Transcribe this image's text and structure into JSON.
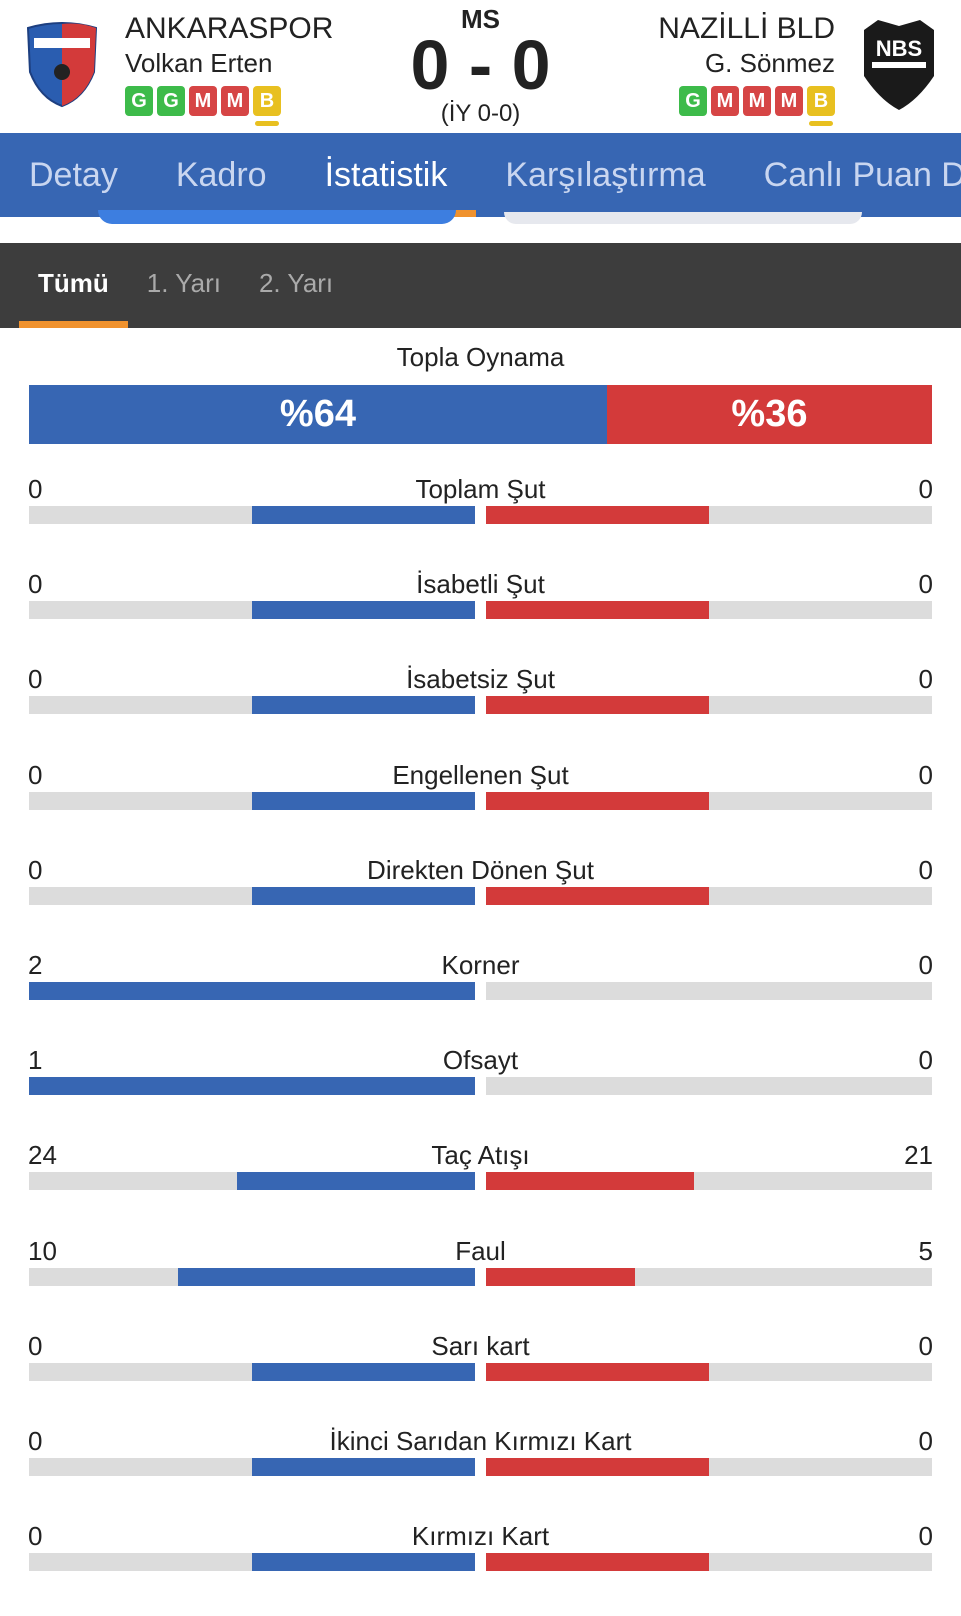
{
  "header": {
    "status": "MS",
    "score_home": "0",
    "score_sep": "-",
    "score_away": "0",
    "halftime": "(İY 0-0)",
    "home": {
      "name": "ANKARASPOR",
      "coach": "Volkan Erten",
      "logo_text": "ANKARASPOR",
      "form": [
        "G",
        "G",
        "M",
        "M",
        "B"
      ]
    },
    "away": {
      "name": "NAZİLLİ BLD",
      "coach": "G. Sönmez",
      "logo_text": "NBS",
      "form": [
        "G",
        "M",
        "M",
        "M",
        "B"
      ]
    }
  },
  "form_colors": {
    "G": "#3dbb4a",
    "M": "#d64545",
    "B": "#e8c020"
  },
  "tabs": [
    "Detay",
    "Kadro",
    "İstatistik",
    "Karşılaştırma",
    "Canlı Puan D"
  ],
  "active_tab": "İstatistik",
  "period_tabs": [
    "Tümü",
    "1. Yarı",
    "2. Yarı"
  ],
  "active_period": "Tümü",
  "possession": {
    "label": "Topla Oynama",
    "home": "%64",
    "away": "%36",
    "home_pct": 64
  },
  "colors": {
    "home": "#3766b3",
    "away": "#d33a3a",
    "track": "#dcdcdc"
  },
  "stats": [
    {
      "label": "Toplam Şut",
      "home": 0,
      "away": 0
    },
    {
      "label": "İsabetli Şut",
      "home": 0,
      "away": 0
    },
    {
      "label": "İsabetsiz Şut",
      "home": 0,
      "away": 0
    },
    {
      "label": "Engellenen Şut",
      "home": 0,
      "away": 0
    },
    {
      "label": "Direkten Dönen Şut",
      "home": 0,
      "away": 0
    },
    {
      "label": "Korner",
      "home": 2,
      "away": 0
    },
    {
      "label": "Ofsayt",
      "home": 1,
      "away": 0
    },
    {
      "label": "Taç Atışı",
      "home": 24,
      "away": 21
    },
    {
      "label": "Faul",
      "home": 10,
      "away": 5
    },
    {
      "label": "Sarı kart",
      "home": 0,
      "away": 0
    },
    {
      "label": "İkinci Sarıdan Kırmızı Kart",
      "home": 0,
      "away": 0
    },
    {
      "label": "Kırmızı Kart",
      "home": 0,
      "away": 0
    }
  ]
}
